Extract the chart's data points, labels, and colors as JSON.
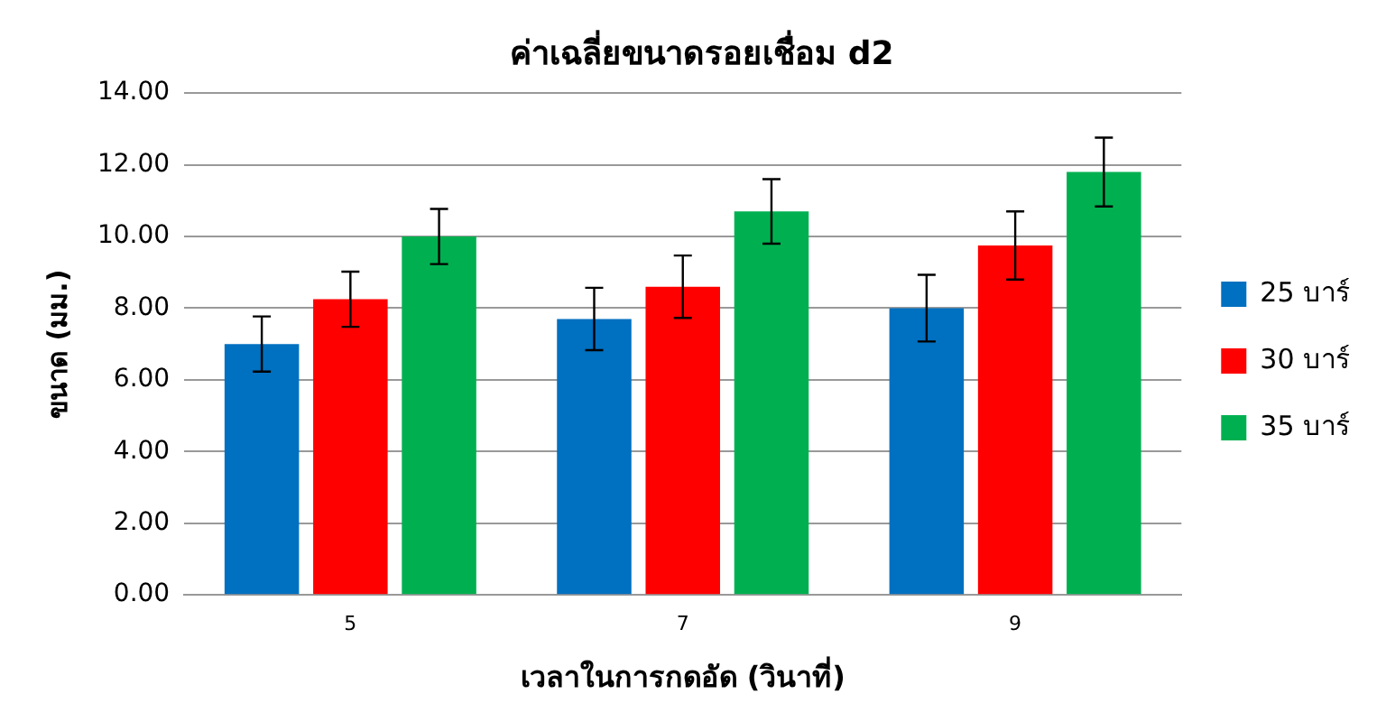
{
  "chart_data": {
    "type": "bar",
    "title": "ค่าเฉลี่ยขนาดรอยเชื่อม d2",
    "xlabel": "เวลาในการกดอัด (วินาที่)",
    "ylabel": "ขนาด (มม.)",
    "categories": [
      "5",
      "7",
      "9"
    ],
    "series": [
      {
        "name": "25 บาร์",
        "color": "#0070c0",
        "values": [
          7.0,
          7.7,
          8.0
        ],
        "errors": [
          0.77,
          0.87,
          0.93
        ]
      },
      {
        "name": "30 บาร์",
        "color": "#ff0000",
        "values": [
          8.25,
          8.6,
          9.75
        ],
        "errors": [
          0.77,
          0.87,
          0.95
        ]
      },
      {
        "name": "35 บาร์",
        "color": "#00b050",
        "values": [
          10.0,
          10.7,
          11.8
        ],
        "errors": [
          0.77,
          0.9,
          0.96
        ]
      }
    ],
    "ylim": [
      0,
      14
    ],
    "yticks": [
      {
        "value": 0,
        "label": "0.00"
      },
      {
        "value": 2,
        "label": "2.00"
      },
      {
        "value": 4,
        "label": "4.00"
      },
      {
        "value": 6,
        "label": "6.00"
      },
      {
        "value": 8,
        "label": "8.00"
      },
      {
        "value": 10,
        "label": "10.00"
      },
      {
        "value": 12,
        "label": "12.00"
      },
      {
        "value": 14,
        "label": "14.00"
      }
    ],
    "grid": "y",
    "legend": "right"
  }
}
